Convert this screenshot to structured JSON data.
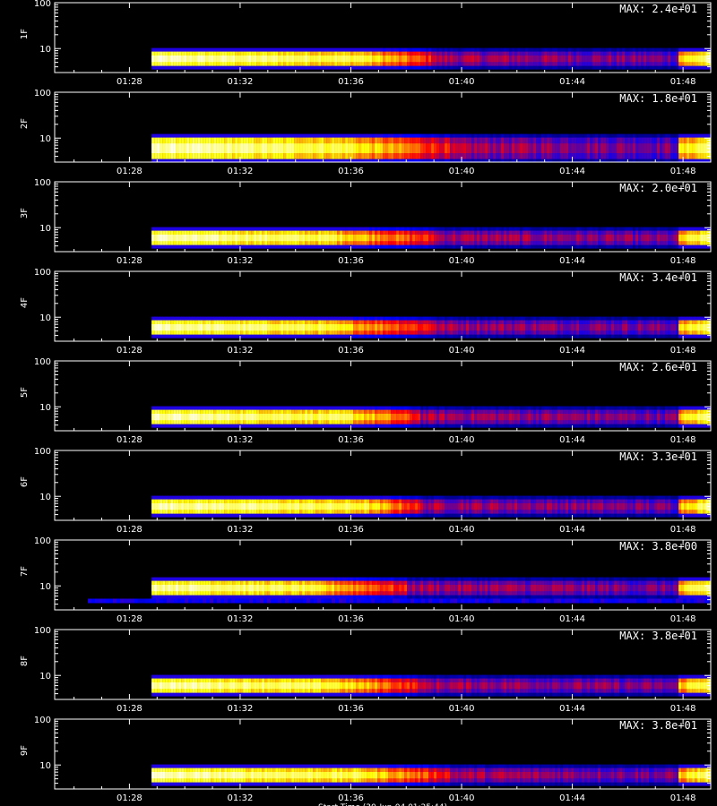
{
  "chart_data": {
    "type": "heatmap",
    "colormap": [
      "#000000",
      "#0000ff",
      "#ff0000",
      "#ffff00",
      "#ffffff"
    ],
    "xticks": [
      "01:28",
      "01:32",
      "01:36",
      "01:40",
      "01:44",
      "01:48"
    ],
    "xtick_minutes": [
      88,
      92,
      96,
      100,
      104,
      108
    ],
    "xlim_minutes": [
      85.3,
      109.0
    ],
    "yscale": "log",
    "yticks": [
      "10",
      "100"
    ],
    "ylim": [
      3,
      100
    ],
    "xlabel": "Start Time (30-Jun-04 01:25:44)",
    "data_start_minutes": 88.8,
    "panels": [
      {
        "label": "1F",
        "max": "MAX: 2.4e+01",
        "band_center": 6,
        "hot_until_minutes": 96.5,
        "fade_minutes": 99
      },
      {
        "label": "2F",
        "max": "MAX: 1.8e+01",
        "band_center": 6,
        "hot_until_minutes": 96.0,
        "fade_minutes": 99.5
      },
      {
        "label": "3F",
        "max": "MAX: 2.0e+01",
        "band_center": 6,
        "hot_until_minutes": 95.5,
        "fade_minutes": 99
      },
      {
        "label": "4F",
        "max": "MAX: 3.4e+01",
        "band_center": 6,
        "hot_until_minutes": 95.0,
        "fade_minutes": 99
      },
      {
        "label": "5F",
        "max": "MAX: 2.6e+01",
        "band_center": 6,
        "hot_until_minutes": 96.0,
        "fade_minutes": 98.5
      },
      {
        "label": "6F",
        "max": "MAX: 3.3e+01",
        "band_center": 6,
        "hot_until_minutes": 96.5,
        "fade_minutes": 98.5
      },
      {
        "label": "7F",
        "max": "MAX: 3.8e+00",
        "band_center": 9,
        "hot_until_minutes": 94.5,
        "fade_minutes": 98
      },
      {
        "label": "8F",
        "max": "MAX: 3.8e+01",
        "band_center": 6,
        "hot_until_minutes": 95.5,
        "fade_minutes": 98.5
      },
      {
        "label": "9F",
        "max": "MAX: 3.8e+01",
        "band_center": 6,
        "hot_until_minutes": 96.5,
        "fade_minutes": 99.5
      }
    ]
  }
}
